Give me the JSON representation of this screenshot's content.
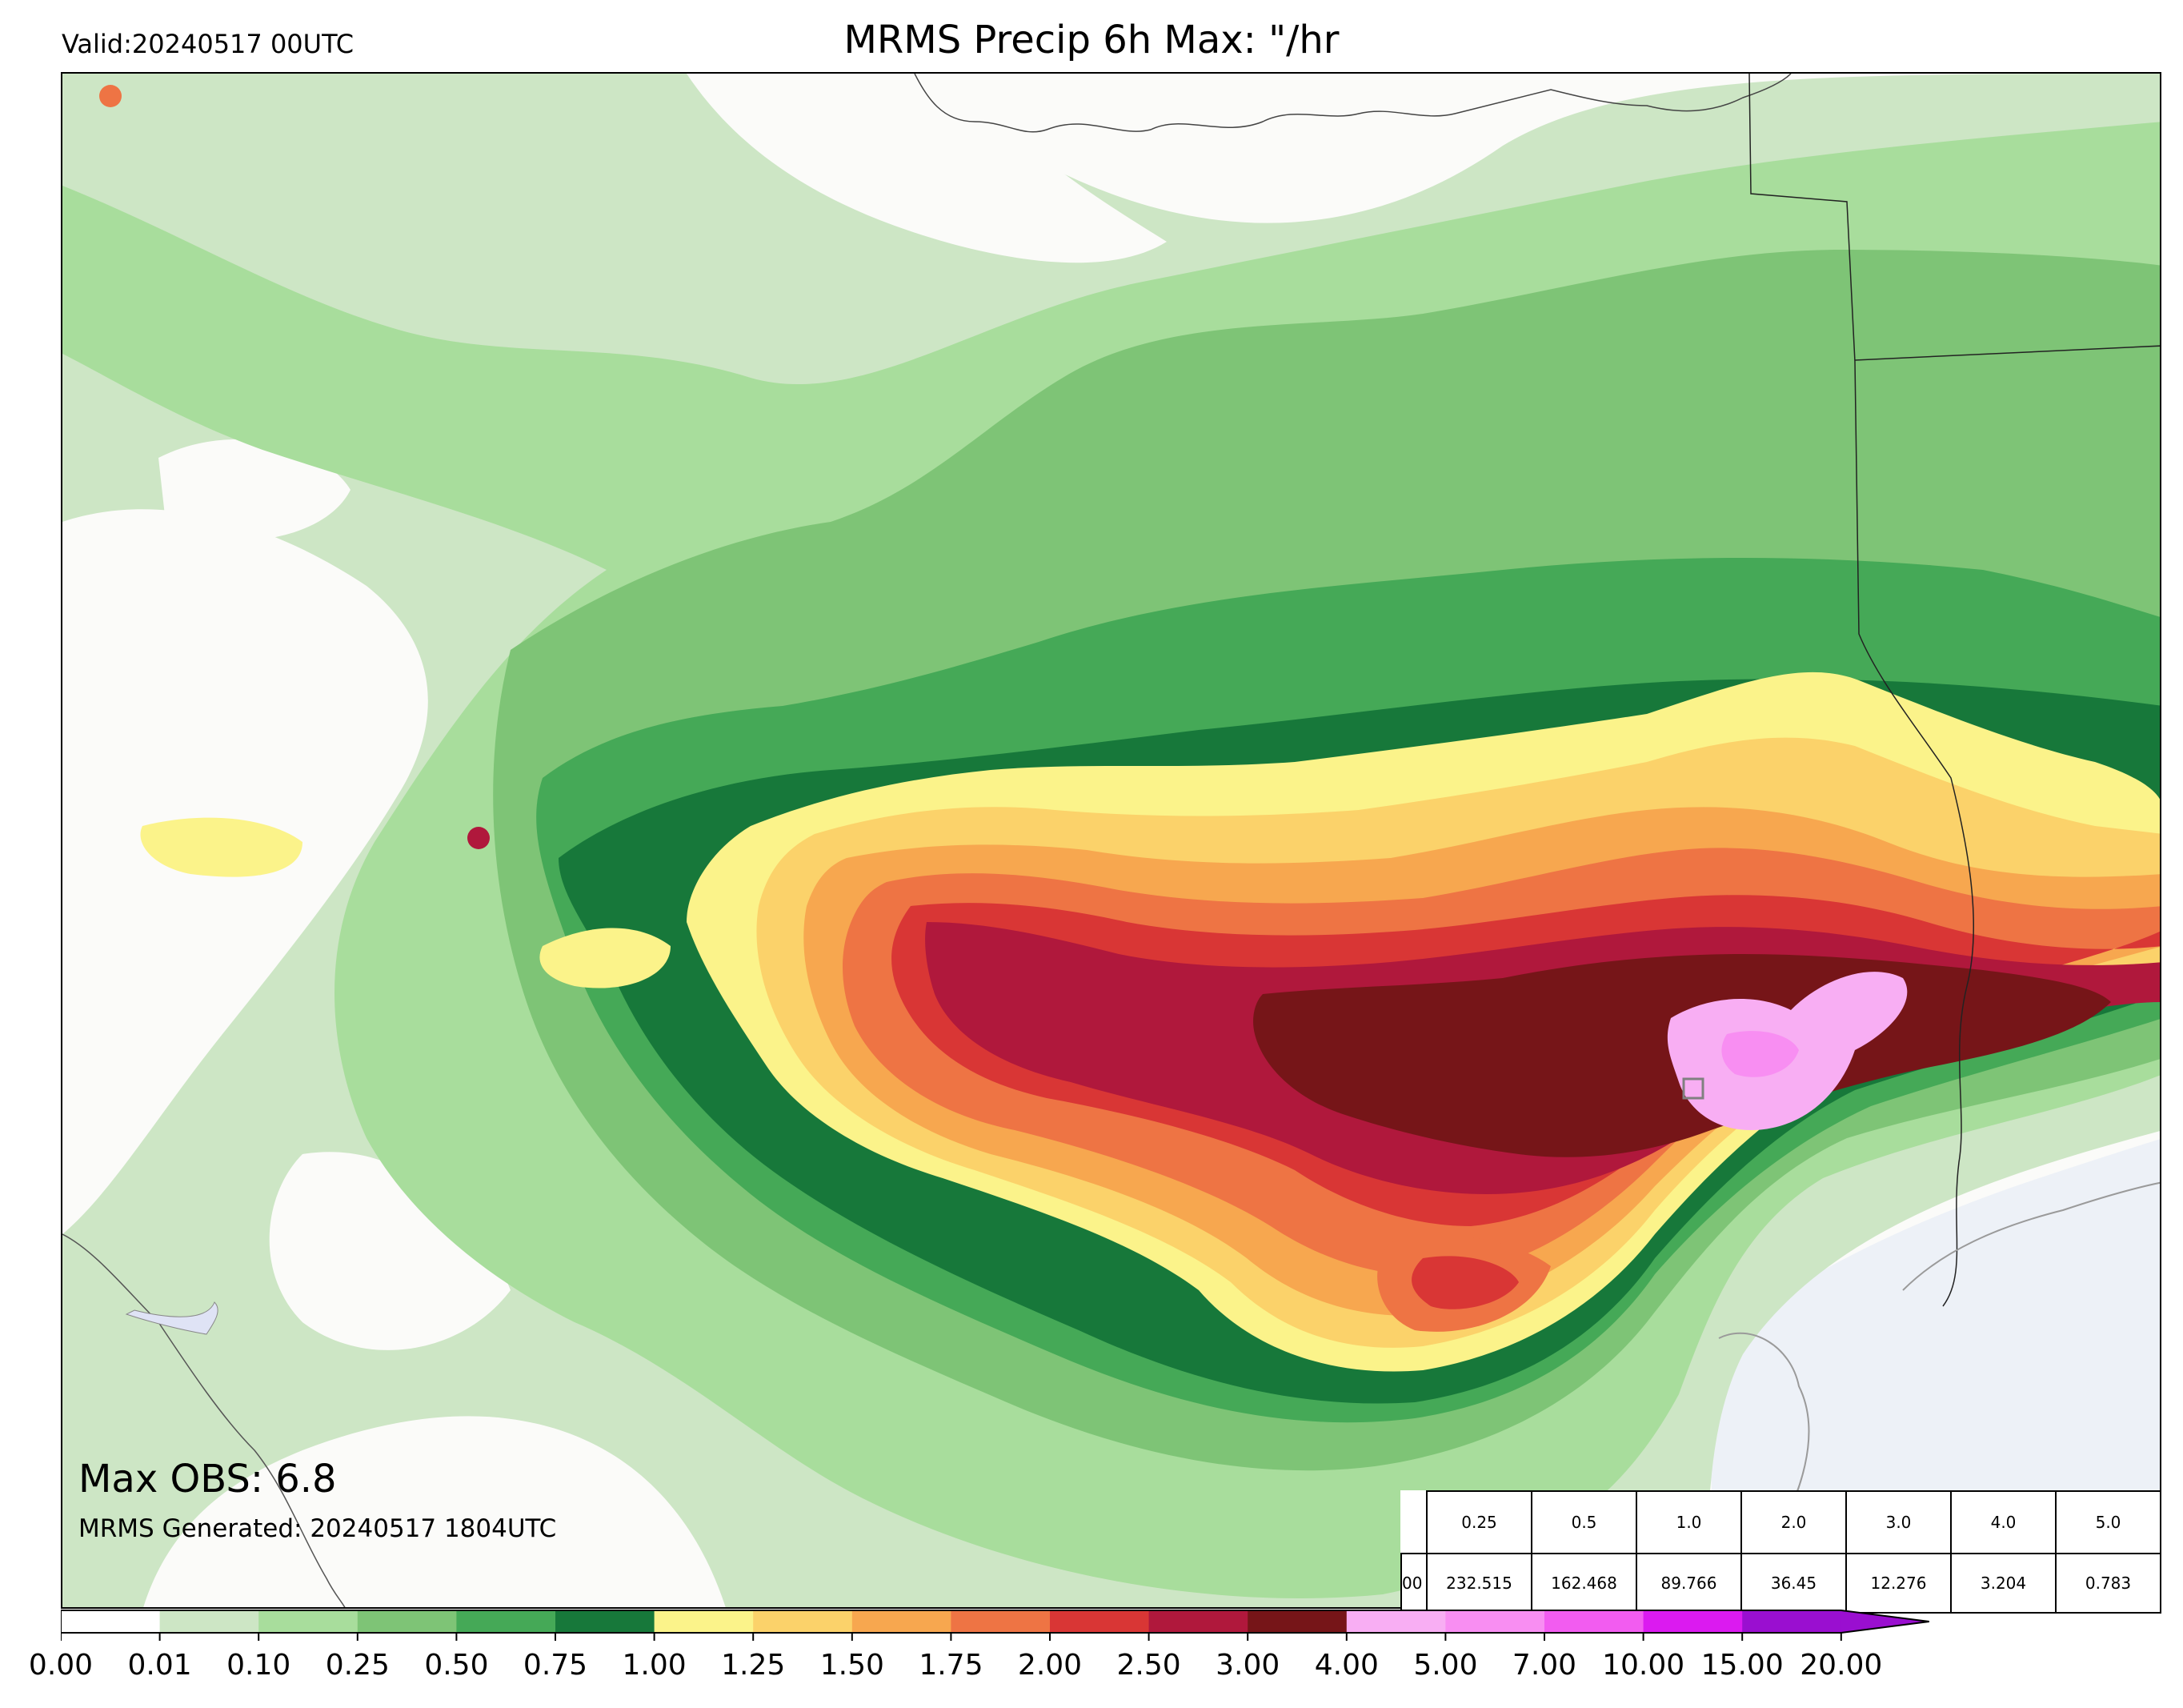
{
  "header": {
    "valid": "Valid:20240517 00UTC",
    "title": "MRMS Precip 6h Max: \"/hr"
  },
  "annotations": {
    "max_obs": "Max OBS: 6.8",
    "generated": "MRMS Generated: 20240517 1804UTC"
  },
  "stats_table": {
    "row_label": "00",
    "thresholds": [
      "0.25",
      "0.5",
      "1.0",
      "2.0",
      "3.0",
      "4.0",
      "5.0"
    ],
    "values": [
      "232.515",
      "162.468",
      "89.766",
      "36.45",
      "12.276",
      "3.204",
      "0.783"
    ]
  },
  "colorbar": {
    "tick_labels": [
      "0.00",
      "0.01",
      "0.10",
      "0.25",
      "0.50",
      "0.75",
      "1.00",
      "1.25",
      "1.50",
      "1.75",
      "2.00",
      "2.50",
      "3.00",
      "4.00",
      "5.00",
      "7.00",
      "10.00",
      "15.00",
      "20.00"
    ],
    "colors": [
      "#ffffff",
      "#cde6c5",
      "#a8dd9c",
      "#7ec476",
      "#45a957",
      "#17783a",
      "#fbf38a",
      "#fbd26a",
      "#f7a74f",
      "#ee7444",
      "#d93635",
      "#b0183c",
      "#761518",
      "#f8aef3",
      "#f88ef2",
      "#f25cf0",
      "#db1af0",
      "#9a0fd0"
    ],
    "extend": "max"
  }
}
